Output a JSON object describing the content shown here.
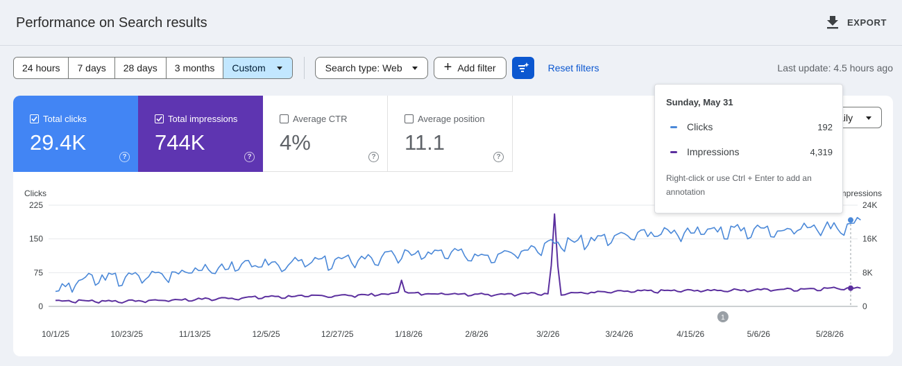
{
  "header": {
    "title": "Performance on Search results",
    "export_label": "EXPORT"
  },
  "filters": {
    "ranges": [
      "24 hours",
      "7 days",
      "28 days",
      "3 months"
    ],
    "custom_label": "Custom",
    "search_type": "Search type: Web",
    "add_filter": "Add filter",
    "reset": "Reset filters",
    "last_update": "Last update: 4.5 hours ago"
  },
  "metrics": {
    "clicks": {
      "label": "Total clicks",
      "value": "29.4K",
      "checked": true
    },
    "impressions": {
      "label": "Total impressions",
      "value": "744K",
      "checked": true
    },
    "ctr": {
      "label": "Average CTR",
      "value": "4%",
      "checked": false
    },
    "position": {
      "label": "Average position",
      "value": "11.1",
      "checked": false
    },
    "help": "?"
  },
  "granularity": "Daily",
  "tooltip": {
    "date": "Sunday, May 31",
    "clicks_label": "Clicks",
    "clicks_value": "192",
    "impressions_label": "Impressions",
    "impressions_value": "4,319",
    "hint": "Right-click or use Ctrl + Enter to add an annotation"
  },
  "colors": {
    "clicks": "#4a88d8",
    "impressions": "#5b2f9e",
    "accent": "#0b57d0"
  },
  "chart_data": {
    "type": "line",
    "x_ticks": [
      "10/1/25",
      "10/23/25",
      "11/13/25",
      "12/5/25",
      "12/27/25",
      "1/18/26",
      "2/8/26",
      "3/2/26",
      "3/24/26",
      "4/15/26",
      "5/6/26",
      "5/28/26"
    ],
    "y_left": {
      "label": "Clicks",
      "ticks": [
        "0",
        "75",
        "150",
        "225"
      ],
      "ylim": [
        0,
        225
      ]
    },
    "y_right": {
      "label": "Impressions",
      "ticks": [
        "0",
        "8K",
        "16K",
        "24K"
      ],
      "ylim": [
        0,
        24000
      ]
    },
    "annotation_marker": {
      "label": "1",
      "date": "4/25/26"
    },
    "series": [
      {
        "name": "Clicks",
        "axis": "left",
        "keypoints": [
          [
            "10/1/25",
            33
          ],
          [
            "10/10/25",
            62
          ],
          [
            "10/23/25",
            65
          ],
          [
            "11/13/25",
            82
          ],
          [
            "12/5/25",
            95
          ],
          [
            "12/27/25",
            103
          ],
          [
            "1/18/26",
            118
          ],
          [
            "2/8/26",
            116
          ],
          [
            "3/2/26",
            142
          ],
          [
            "3/24/26",
            158
          ],
          [
            "4/15/26",
            170
          ],
          [
            "5/6/26",
            172
          ],
          [
            "5/28/26",
            180
          ],
          [
            "5/31/26",
            192
          ]
        ]
      },
      {
        "name": "Impressions",
        "axis": "right",
        "keypoints": [
          [
            "10/1/25",
            1350
          ],
          [
            "10/23/25",
            1250
          ],
          [
            "11/13/25",
            1700
          ],
          [
            "12/5/25",
            2300
          ],
          [
            "12/27/25",
            2600
          ],
          [
            "1/18/26",
            3100
          ],
          [
            "2/8/26",
            2900
          ],
          [
            "3/2/26",
            3100
          ],
          [
            "3/24/26",
            3600
          ],
          [
            "4/15/26",
            3800
          ],
          [
            "5/6/26",
            4000
          ],
          [
            "5/28/26",
            4400
          ],
          [
            "5/31/26",
            4319
          ]
        ],
        "spikes": [
          [
            "1/13/26",
            6200
          ],
          [
            "2/28/26",
            21900
          ]
        ]
      }
    ]
  }
}
